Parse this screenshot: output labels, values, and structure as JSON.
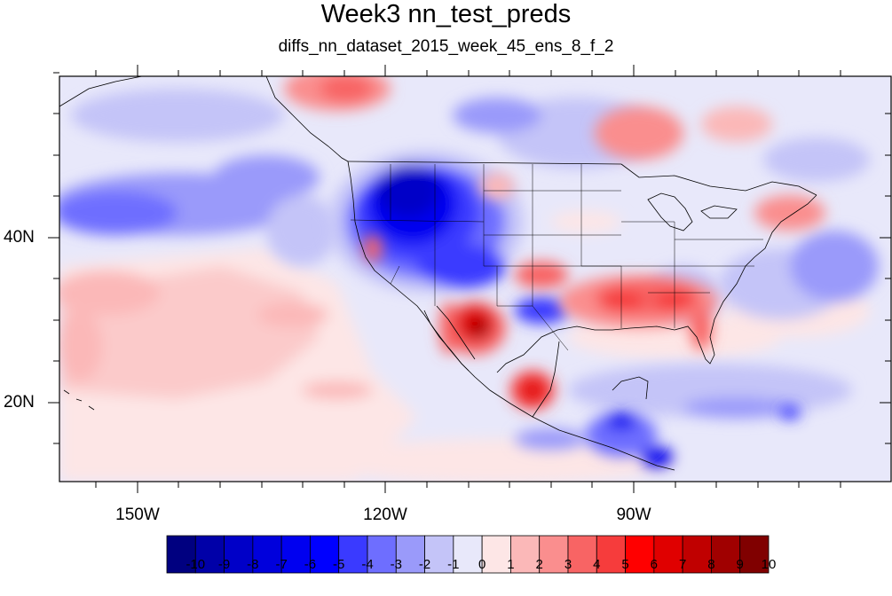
{
  "title": "Week3 nn_test_preds",
  "subtitle": "diffs_nn_dataset_2015_week_45_ens_8_f_2",
  "map": {
    "region": "North America / Northeast Pacific",
    "lon_range": [
      -160,
      -60
    ],
    "lat_range": [
      10,
      60
    ],
    "lat_ticks": [
      "40N",
      "20N"
    ],
    "lon_ticks": [
      "150W",
      "120W",
      "90W"
    ]
  },
  "colorbar": {
    "labels": [
      "-10",
      "-9",
      "-8",
      "-7",
      "-6",
      "-5",
      "-4",
      "-3",
      "-2",
      "-1",
      "0",
      "1",
      "2",
      "3",
      "4",
      "5",
      "6",
      "7",
      "8",
      "9",
      "10"
    ],
    "colors": [
      "#000080",
      "#0000a8",
      "#0000c8",
      "#0000dc",
      "#0000f0",
      "#0000ff",
      "#3a3aff",
      "#6e6eff",
      "#9a9afa",
      "#c4c4f8",
      "#e8e8fa",
      "#fde6e6",
      "#fbb8b8",
      "#fa8e8e",
      "#f86464",
      "#f63c3c",
      "#ff0000",
      "#e00000",
      "#c00000",
      "#a00000",
      "#800000"
    ]
  }
}
